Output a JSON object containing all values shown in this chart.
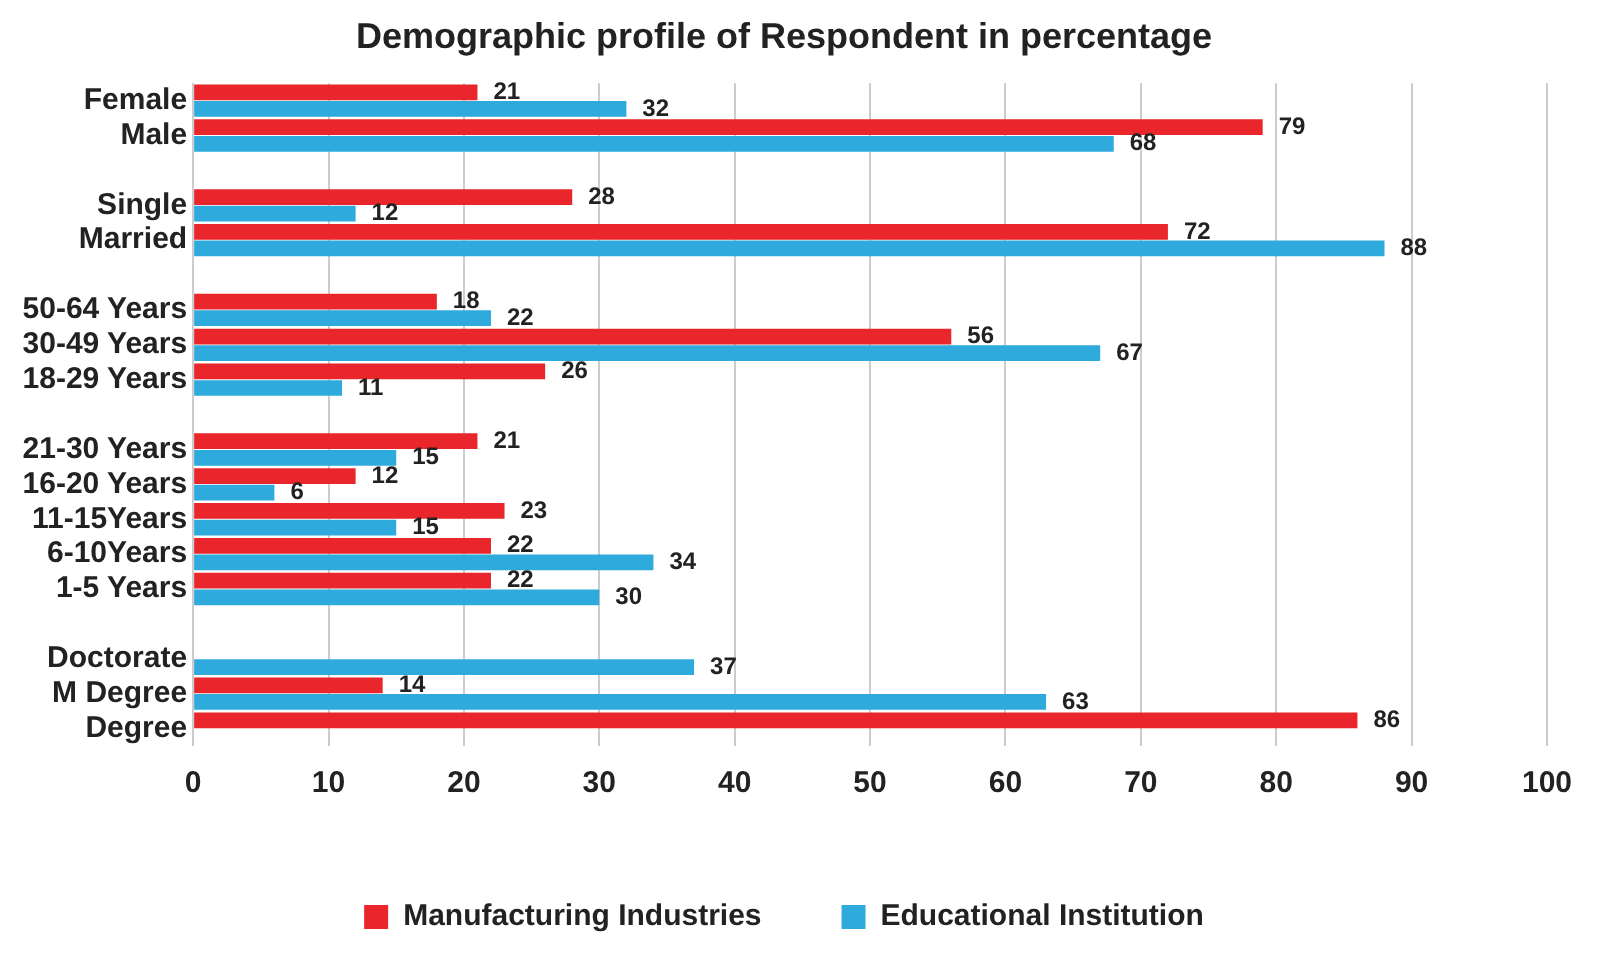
{
  "chart_data": {
    "type": "bar",
    "orientation": "horizontal",
    "title": "Demographic profile of Respondent in percentage",
    "categories": [
      "Female",
      "Male",
      null,
      "Single",
      "Married",
      null,
      "50-64 Years",
      "30-49 Years",
      "18-29 Years",
      null,
      "21-30 Years",
      "16-20 Years",
      "11-15Years",
      "6-10Years",
      "1-5 Years",
      null,
      "Doctorate",
      "M Degree",
      "Degree"
    ],
    "series": [
      {
        "name": "Manufacturing Industries",
        "color": "#e8262b",
        "values": [
          21,
          79,
          null,
          28,
          72,
          null,
          18,
          56,
          26,
          null,
          21,
          12,
          23,
          22,
          22,
          null,
          null,
          14,
          86
        ]
      },
      {
        "name": "Educational Institution",
        "color": "#2eaadc",
        "values": [
          32,
          68,
          null,
          12,
          88,
          null,
          22,
          67,
          11,
          null,
          15,
          6,
          15,
          34,
          30,
          null,
          37,
          63,
          null
        ]
      }
    ],
    "xlim": [
      0,
      100
    ],
    "xticks": [
      0,
      10,
      20,
      30,
      40,
      50,
      60,
      70,
      80,
      90,
      100
    ],
    "grid": "x",
    "legend": "bottom",
    "data_labels": true
  }
}
